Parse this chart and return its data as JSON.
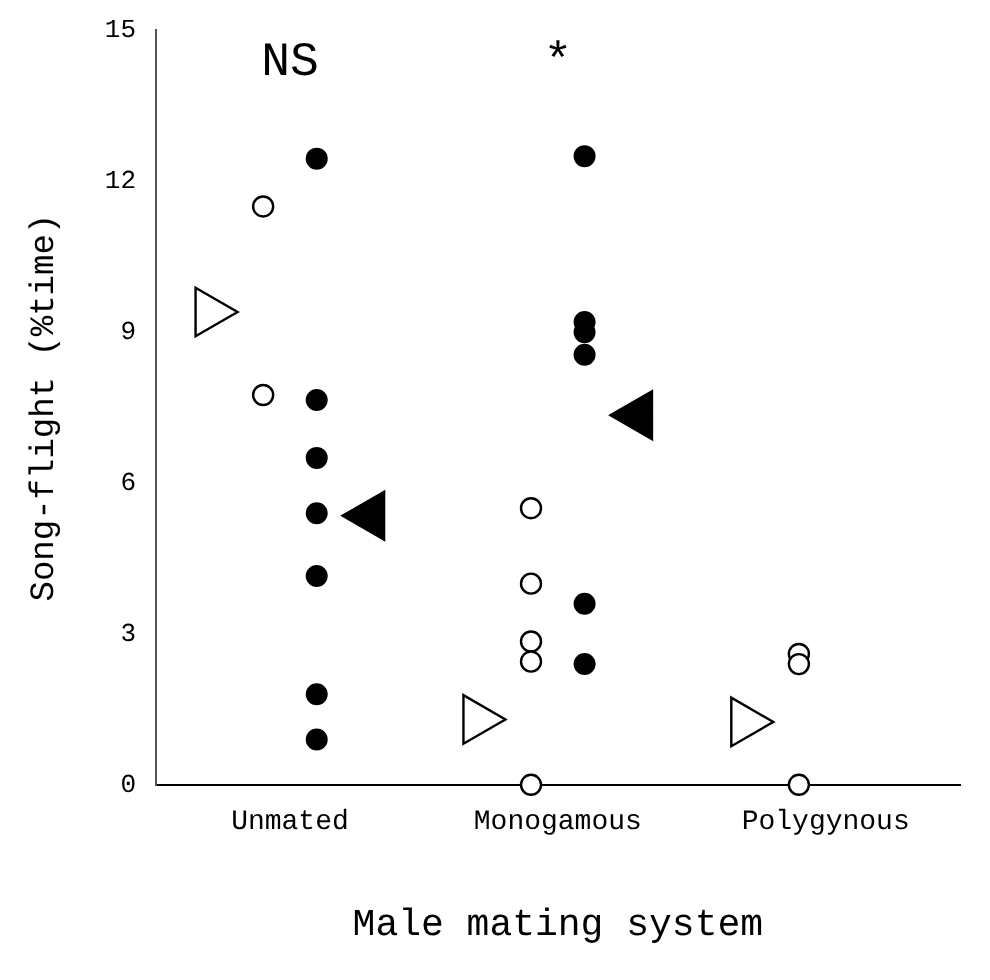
{
  "chart_data": {
    "type": "scatter",
    "xlabel": "Male mating system",
    "ylabel": "Song-flight (%time)",
    "categories": [
      "Unmated",
      "Monogamous",
      "Polygynous"
    ],
    "series": [
      {
        "color": "#ffffff",
        "marker": "circle",
        "x": [
          "Unmated",
          "Unmated",
          "Monogamous",
          "Monogamous",
          "Monogamous",
          "Monogamous",
          "Monogamous",
          "Polygynous",
          "Polygynous",
          "Polygynous"
        ],
        "values": [
          11.5,
          7.75,
          5.5,
          4.0,
          2.85,
          2.45,
          0,
          2.6,
          2.4,
          0
        ]
      },
      {
        "color": "#000000",
        "marker": "circle",
        "x": [
          "Unmated",
          "Unmated",
          "Unmated",
          "Unmated",
          "Unmated",
          "Unmated",
          "Unmated",
          "Monogamous",
          "Monogamous",
          "Monogamous",
          "Monogamous",
          "Monogamous",
          "Monogamous"
        ],
        "values": [
          12.45,
          7.65,
          6.5,
          5.4,
          4.15,
          1.8,
          0.9,
          12.5,
          9.2,
          9.0,
          8.55,
          3.6,
          2.4
        ]
      },
      {
        "color": "#ffffff",
        "marker": "triangle",
        "x": [
          "Unmated",
          "Monogamous",
          "Polygynous"
        ],
        "values": [
          9.4,
          1.3,
          1.25
        ]
      },
      {
        "color": "#000000",
        "marker": "triangle",
        "x": [
          "Unmated",
          "Monogamous"
        ],
        "values": [
          5.35,
          7.35
        ]
      }
    ],
    "ylim": [
      0,
      15
    ],
    "yticks": [
      0,
      3,
      6,
      9,
      12,
      15
    ],
    "grid": false,
    "legend": false,
    "annotations": [
      "NS",
      "*"
    ]
  }
}
